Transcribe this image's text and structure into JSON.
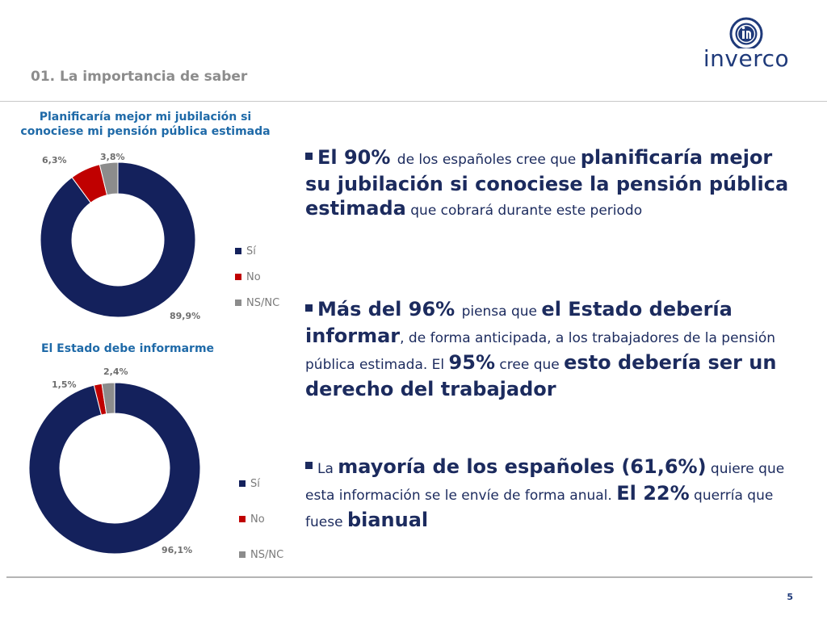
{
  "header": {
    "section_title": "01. La importancia de saber",
    "brand": "inverco"
  },
  "footer": {
    "page_number": "5"
  },
  "colors": {
    "si": "#14215c",
    "no": "#c00000",
    "nsnc": "#8c8c8c",
    "title_blue": "#1f6aa8"
  },
  "chart_data": [
    {
      "type": "pie",
      "title": "Planificaría mejor mi jubilación si conociese mi pensión pública estimada",
      "title_lines": [
        "Planificaría mejor mi jubilación si",
        "conociese mi pensión pública estimada"
      ],
      "categories": [
        "Sí",
        "No",
        "NS/NC"
      ],
      "values": [
        89.9,
        6.3,
        3.8
      ],
      "data_labels": [
        "89,9%",
        "6,3%",
        "3,8%"
      ],
      "legend": "right"
    },
    {
      "type": "pie",
      "title": "El Estado debe informarme",
      "title_lines": [
        "El Estado debe informarme"
      ],
      "categories": [
        "Sí",
        "No",
        "NS/NC"
      ],
      "values": [
        96.1,
        1.5,
        2.4
      ],
      "data_labels": [
        "96,1%",
        "1,5%",
        "2,4%"
      ],
      "legend": "right"
    }
  ],
  "bullets": [
    [
      {
        "t": "El 90% ",
        "s": "big"
      },
      {
        "t": "de los españoles cree que ",
        "s": "small"
      },
      {
        "t": "planificaría mejor su jubilación si conociese la pensión pública estimada",
        "s": "big"
      },
      {
        "t": " que cobrará durante este periodo",
        "s": "small"
      }
    ],
    [
      {
        "t": "Más del 96% ",
        "s": "big"
      },
      {
        "t": "piensa que ",
        "s": "small"
      },
      {
        "t": "el Estado debería informar",
        "s": "big"
      },
      {
        "t": ", de forma anticipada, a los trabajadores de la pensión pública estimada. El ",
        "s": "small"
      },
      {
        "t": "95%",
        "s": "big"
      },
      {
        "t": " cree que ",
        "s": "small"
      },
      {
        "t": "esto debería ser un derecho del trabajador",
        "s": "big"
      }
    ],
    [
      {
        "t": "La ",
        "s": "small"
      },
      {
        "t": "mayoría de los españoles (61,6%)",
        "s": "big"
      },
      {
        "t": " quiere que esta información se le envíe de forma anual. ",
        "s": "small"
      },
      {
        "t": "El 22%",
        "s": "big"
      },
      {
        "t": " querría que fuese ",
        "s": "small"
      },
      {
        "t": "bianual",
        "s": "big"
      }
    ]
  ]
}
